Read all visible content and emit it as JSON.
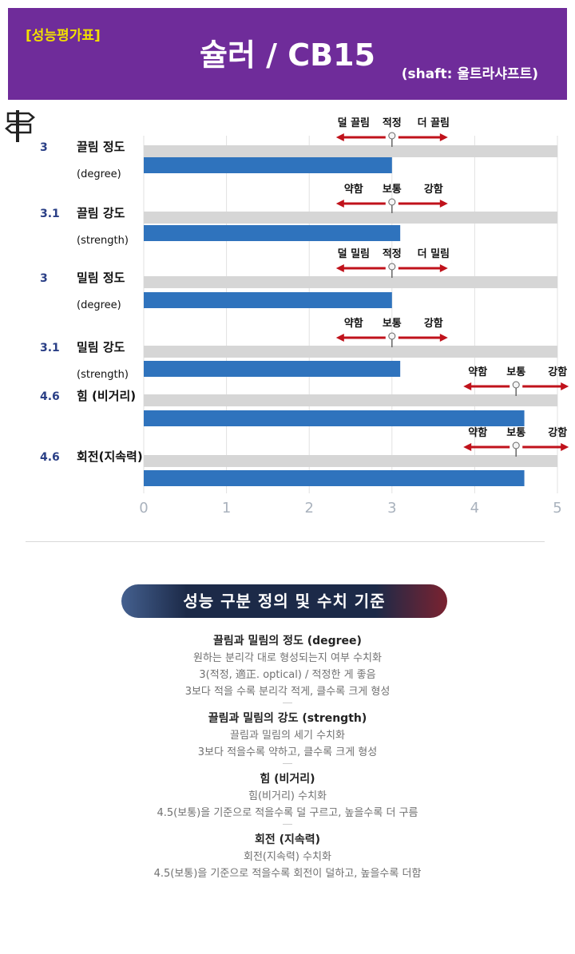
{
  "header": {
    "tag": "[성능평가표]",
    "title": "슐러 / CB15",
    "shaft": "(shaft: 울트라샤프트)"
  },
  "colors": {
    "header_bg": "#6f2c9a",
    "tag_text": "#f2e000",
    "bar": "#2f73bd",
    "track": "#d6d6d6",
    "arrow": "#c0121b",
    "score_text": "#2a3f86"
  },
  "icons": {
    "signpost": "signpost-icon",
    "pin": "pushpin-icon"
  },
  "chart_data": {
    "type": "bar",
    "orientation": "horizontal",
    "xlim": [
      0,
      5
    ],
    "xticks": [
      "0",
      "1",
      "2",
      "3",
      "4",
      "5"
    ],
    "grid": true,
    "rows": [
      {
        "score": "3",
        "value": 3.0,
        "label": "끌림 정도",
        "sublabel": "(degree)",
        "marker": 3.0,
        "low": "덜 끌림",
        "mid": "적정",
        "high": "더 끌림"
      },
      {
        "score": "3.1",
        "value": 3.1,
        "label": "끌림 강도",
        "sublabel": "(strength)",
        "marker": 3.0,
        "low": "약함",
        "mid": "보통",
        "high": "강함"
      },
      {
        "score": "3",
        "value": 3.0,
        "label": "밀림 정도",
        "sublabel": "(degree)",
        "marker": 3.0,
        "low": "덜 밀림",
        "mid": "적정",
        "high": "더 밀림"
      },
      {
        "score": "3.1",
        "value": 3.1,
        "label": "밀림 강도",
        "sublabel": "(strength)",
        "marker": 3.0,
        "low": "약함",
        "mid": "보통",
        "high": "강함"
      },
      {
        "score": "4.6",
        "value": 4.6,
        "label": "힘 (비거리)",
        "sublabel": "",
        "marker": 4.5,
        "low": "약함",
        "mid": "보통",
        "high": "강함"
      },
      {
        "score": "4.6",
        "value": 4.6,
        "label": "회전(지속력)",
        "sublabel": "",
        "marker": 4.5,
        "low": "약함",
        "mid": "보통",
        "high": "강함"
      }
    ]
  },
  "section": {
    "title": "성능 구분 정의 및 수치 기준",
    "definitions": [
      {
        "title": "끌림과 밀림의 정도 (degree)",
        "lines": [
          "원하는 분리각 대로 형성되는지 여부 수치화",
          "3(적정, 適正. optical) / 적정한 게 좋음",
          "3보다 적을 수록 분리각 적게, 클수록 크게 형성"
        ]
      },
      {
        "title": "끌림과 밀림의 강도 (strength)",
        "lines": [
          "끌림과 밀림의 세기 수치화",
          "3보다 적을수록 약하고, 클수록 크게 형성"
        ]
      },
      {
        "title": "힘 (비거리)",
        "lines": [
          "힘(비거리) 수치화",
          "4.5(보통)을 기준으로 적을수록 덜 구르고, 높을수록 더 구름"
        ]
      },
      {
        "title": "회전 (지속력)",
        "lines": [
          "회전(지속력) 수치화",
          "4.5(보통)을 기준으로 적을수록 회전이 덜하고, 높을수록 더함"
        ]
      }
    ]
  }
}
